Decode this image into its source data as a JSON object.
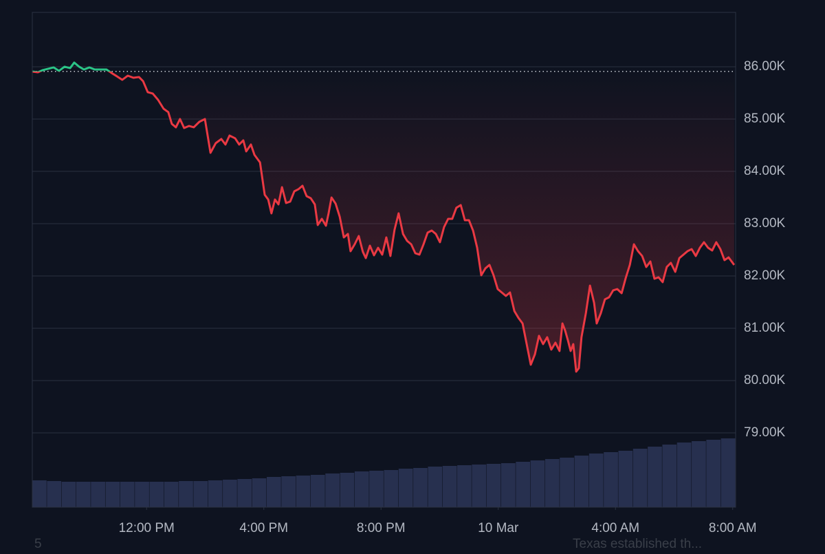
{
  "chart_data": {
    "type": "baseline-line",
    "x": [
      8.1,
      8.29,
      8.45,
      8.64,
      8.83,
      9.01,
      9.2,
      9.39,
      9.53,
      9.7,
      9.86,
      10.05,
      10.23,
      10.42,
      10.63,
      10.8,
      10.99,
      11.17,
      11.36,
      11.55,
      11.74,
      11.88,
      12.04,
      12.21,
      12.39,
      12.58,
      12.74,
      12.86,
      13.0,
      13.14,
      13.28,
      13.45,
      13.61,
      13.8,
      13.99,
      14.18,
      14.36,
      14.55,
      14.69,
      14.83,
      15.02,
      15.16,
      15.3,
      15.4,
      15.56,
      15.68,
      15.87,
      16.03,
      16.15,
      16.26,
      16.38,
      16.5,
      16.62,
      16.76,
      16.9,
      17.04,
      17.18,
      17.32,
      17.46,
      17.6,
      17.74,
      17.84,
      17.98,
      18.12,
      18.21,
      18.31,
      18.45,
      18.59,
      18.73,
      18.87,
      18.96,
      19.1,
      19.24,
      19.38,
      19.48,
      19.62,
      19.76,
      19.9,
      20.04,
      20.18,
      20.32,
      20.46,
      20.6,
      20.75,
      20.89,
      21.03,
      21.17,
      21.31,
      21.45,
      21.59,
      21.73,
      21.87,
      22.01,
      22.15,
      22.29,
      22.43,
      22.57,
      22.72,
      22.86,
      23.0,
      23.14,
      23.28,
      23.42,
      23.56,
      23.7,
      23.84,
      23.98,
      24.12,
      24.26,
      24.4,
      24.55,
      24.69,
      24.83,
      24.97,
      25.11,
      25.25,
      25.39,
      25.53,
      25.67,
      25.81,
      25.95,
      26.09,
      26.19,
      26.28,
      26.38,
      26.47,
      26.56,
      26.66,
      26.75,
      26.84,
      26.99,
      27.13,
      27.27,
      27.36,
      27.5,
      27.64,
      27.78,
      27.92,
      28.06,
      28.21,
      28.35,
      28.49,
      28.63,
      28.77,
      28.91,
      29.05,
      29.19,
      29.33,
      29.47,
      29.61,
      29.75,
      29.89,
      30.04,
      30.18,
      30.32,
      30.46,
      30.6,
      30.74,
      30.88,
      31.02,
      31.16,
      31.3,
      31.44,
      31.58,
      31.72,
      31.86,
      32.05
    ],
    "values": [
      85908,
      85895,
      85934,
      85961,
      85987,
      85921,
      86000,
      85974,
      86079,
      86000,
      85947,
      85987,
      85947,
      85947,
      85947,
      85882,
      85816,
      85750,
      85829,
      85789,
      85803,
      85724,
      85513,
      85487,
      85368,
      85197,
      85132,
      84908,
      84842,
      85000,
      84829,
      84868,
      84842,
      84947,
      85000,
      84355,
      84539,
      84618,
      84513,
      84684,
      84632,
      84513,
      84592,
      84382,
      84513,
      84316,
      84171,
      83553,
      83461,
      83197,
      83461,
      83368,
      83697,
      83395,
      83421,
      83618,
      83658,
      83724,
      83526,
      83487,
      83368,
      82974,
      83092,
      82961,
      83197,
      83500,
      83382,
      83132,
      82737,
      82803,
      82474,
      82605,
      82763,
      82461,
      82342,
      82579,
      82395,
      82539,
      82408,
      82737,
      82382,
      82882,
      83197,
      82803,
      82671,
      82605,
      82434,
      82408,
      82605,
      82829,
      82868,
      82803,
      82645,
      82934,
      83092,
      83092,
      83303,
      83355,
      83066,
      83066,
      82868,
      82539,
      82013,
      82145,
      82211,
      82013,
      81750,
      81684,
      81618,
      81684,
      81329,
      81197,
      81092,
      80697,
      80303,
      80500,
      80855,
      80697,
      80829,
      80592,
      80724,
      80566,
      81092,
      80961,
      80763,
      80566,
      80697,
      80171,
      80237,
      80829,
      81289,
      81816,
      81487,
      81092,
      81289,
      81553,
      81592,
      81724,
      81750,
      81671,
      81961,
      82211,
      82605,
      82474,
      82382,
      82171,
      82276,
      81947,
      81974,
      81882,
      82171,
      82250,
      82079,
      82342,
      82408,
      82474,
      82513,
      82382,
      82539,
      82645,
      82539,
      82487,
      82645,
      82513,
      82303,
      82355,
      82211
    ],
    "baseline": 85910,
    "up_color": "#2bc487",
    "down_color": "#ea3943",
    "xlim": [
      8.1,
      32.1
    ],
    "xticks": [
      {
        "value": 12,
        "label": "12:00 PM"
      },
      {
        "value": 16,
        "label": "4:00 PM"
      },
      {
        "value": 20,
        "label": "8:00 PM"
      },
      {
        "value": 24,
        "label": "10 Mar"
      },
      {
        "value": 28,
        "label": "4:00 AM"
      },
      {
        "value": 32,
        "label": "8:00 AM"
      }
    ],
    "ylim": [
      77579,
      87039
    ],
    "yticks": [
      {
        "value": 79000,
        "label": "79.00K"
      },
      {
        "value": 80000,
        "label": "80.00K"
      },
      {
        "value": 81000,
        "label": "81.00K"
      },
      {
        "value": 82000,
        "label": "82.00K"
      },
      {
        "value": 83000,
        "label": "83.00K"
      },
      {
        "value": 84000,
        "label": "84.00K"
      },
      {
        "value": 85000,
        "label": "85.00K"
      },
      {
        "value": 86000,
        "label": "86.00K"
      }
    ],
    "grid": true,
    "volume": {
      "color": "#27304f",
      "ylim": [
        0,
        719
      ],
      "values": [
        39,
        38,
        37,
        37,
        37,
        37,
        37,
        37,
        37,
        37,
        38,
        38,
        39,
        40,
        41,
        42,
        44,
        45,
        46,
        47,
        49,
        50,
        52,
        53,
        54,
        56,
        57,
        59,
        60,
        61,
        62,
        63,
        64,
        66,
        68,
        70,
        72,
        75,
        78,
        80,
        82,
        85,
        88,
        91,
        94,
        96,
        98,
        100
      ]
    }
  },
  "footer": {
    "left": "5",
    "right": "Texas established th..."
  }
}
